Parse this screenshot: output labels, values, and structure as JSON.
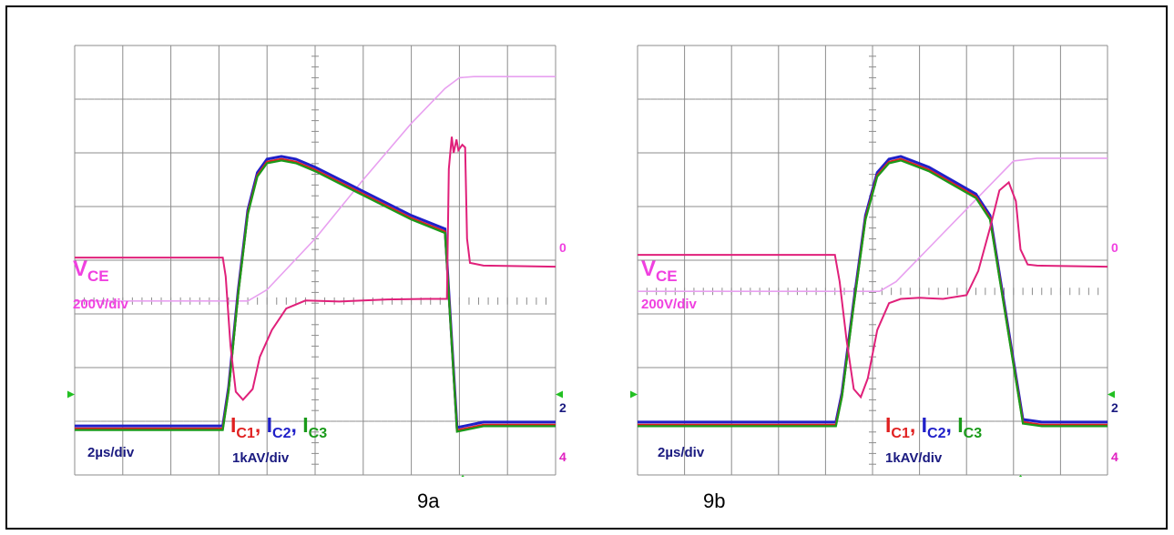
{
  "colors": {
    "vce": "#e0207a",
    "vce_label": "#f040e0",
    "ic1": "#e02020",
    "ic2": "#2020c8",
    "ic3": "#1a9a1a",
    "grid": "#8c8c8c",
    "marker": "#22c022",
    "text_dark": "#1a1a80"
  },
  "chart_data": [
    {
      "type": "line",
      "caption": "9a",
      "grid": true,
      "xlim": [
        0,
        10
      ],
      "ylim": [
        0,
        8
      ],
      "labels": {
        "vce_name": "V",
        "vce_sub": "CE",
        "vce_scale": "200V/div",
        "time_scale": "2µs/div",
        "ic_scale": "1kAV/div",
        "ic1_name": "I",
        "ic1_sub": "C1",
        "ic1_sep": ",",
        "ic2_name": "I",
        "ic2_sub": "C2",
        "ic2_sep": ",",
        "ic3_name": "I",
        "ic3_sub": "C3",
        "right_marker_top": "0",
        "right_marker_mid": "2",
        "right_marker_bottom": "4"
      },
      "series": [
        {
          "key": "vce_trace",
          "x": [
            0,
            3.08,
            3.14,
            3.24,
            3.35,
            3.5,
            3.7,
            3.85,
            4.1,
            4.4,
            4.8,
            5.5,
            6.5,
            7.3,
            7.6,
            7.74,
            7.78,
            7.84,
            7.88,
            7.94,
            7.98,
            8.06,
            8.12,
            8.16,
            8.22,
            8.5,
            10
          ],
          "y": [
            4.05,
            4.05,
            3.7,
            2.4,
            1.55,
            1.4,
            1.6,
            2.2,
            2.7,
            3.1,
            3.25,
            3.23,
            3.27,
            3.28,
            3.28,
            3.28,
            5.7,
            6.3,
            6.0,
            6.25,
            6.05,
            6.15,
            6.1,
            4.4,
            3.95,
            3.9,
            3.88
          ]
        },
        {
          "key": "ic_trace",
          "x": [
            0,
            3.08,
            3.2,
            3.4,
            3.6,
            3.8,
            4.0,
            4.3,
            4.6,
            5.0,
            6.0,
            7.0,
            7.7,
            7.95,
            8.5,
            10
          ],
          "y": [
            0.88,
            0.88,
            1.6,
            3.4,
            4.9,
            5.6,
            5.85,
            5.9,
            5.85,
            5.7,
            5.25,
            4.8,
            4.55,
            0.85,
            0.95,
            0.95
          ]
        },
        {
          "key": "energy_trace",
          "x": [
            0,
            3.6,
            4.0,
            5.0,
            6.0,
            7.0,
            7.7,
            8.0,
            8.3,
            10
          ],
          "y": [
            3.24,
            3.24,
            3.45,
            4.4,
            5.5,
            6.55,
            7.2,
            7.4,
            7.42,
            7.42
          ]
        }
      ]
    },
    {
      "type": "line",
      "caption": "9b",
      "grid": true,
      "xlim": [
        0,
        10
      ],
      "ylim": [
        0,
        8
      ],
      "labels": {
        "vce_name": "V",
        "vce_sub": "CE",
        "vce_scale": "200V/div",
        "time_scale": "2µs/div",
        "ic_scale": "1kAV/div",
        "ic1_name": "I",
        "ic1_sub": "C1",
        "ic1_sep": ",",
        "ic2_name": "I",
        "ic2_sub": "C2",
        "ic2_sep": ",",
        "ic3_name": "I",
        "ic3_sub": "C3",
        "right_marker_top": "0",
        "right_marker_mid": "2",
        "right_marker_bottom": "4"
      },
      "series": [
        {
          "key": "vce_trace",
          "x": [
            0,
            4.2,
            4.3,
            4.45,
            4.6,
            4.75,
            4.9,
            5.1,
            5.35,
            5.6,
            6.0,
            6.5,
            7.0,
            7.25,
            7.5,
            7.7,
            7.9,
            8.05,
            8.15,
            8.3,
            8.5,
            10
          ],
          "y": [
            4.1,
            4.1,
            3.6,
            2.5,
            1.6,
            1.45,
            1.8,
            2.7,
            3.2,
            3.28,
            3.3,
            3.28,
            3.35,
            3.8,
            4.6,
            5.3,
            5.45,
            5.1,
            4.2,
            3.92,
            3.9,
            3.88
          ]
        },
        {
          "key": "ic_trace",
          "x": [
            0,
            4.22,
            4.35,
            4.6,
            4.85,
            5.1,
            5.35,
            5.6,
            6.2,
            6.8,
            7.2,
            7.5,
            8.2,
            8.6,
            10
          ],
          "y": [
            0.95,
            0.95,
            1.5,
            3.2,
            4.8,
            5.6,
            5.85,
            5.9,
            5.7,
            5.4,
            5.2,
            4.8,
            1.0,
            0.95,
            0.95
          ]
        },
        {
          "key": "energy_trace",
          "x": [
            0,
            5.15,
            5.5,
            6.0,
            6.5,
            7.0,
            7.5,
            8.0,
            8.5,
            10
          ],
          "y": [
            3.42,
            3.42,
            3.6,
            4.05,
            4.5,
            4.95,
            5.4,
            5.85,
            5.9,
            5.9
          ]
        }
      ]
    }
  ]
}
